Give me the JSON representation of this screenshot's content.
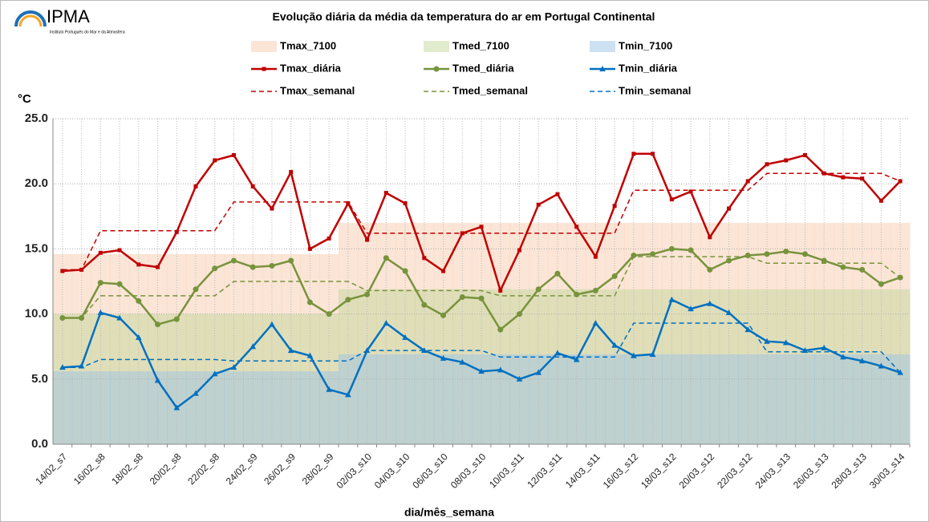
{
  "logo": {
    "text": "IPMA",
    "subtext": "Instituto Português do Mar e da Atmosfera"
  },
  "chart_data": {
    "type": "line",
    "title": "Evolução diária da média da temperatura do ar em Portugal Continental",
    "y_label": "°C",
    "x_label": "dia/mês_semana",
    "categories": [
      "14/02_s7",
      null,
      "16/02_s8",
      null,
      "18/02_s8",
      null,
      "20/02_s8",
      null,
      "22/02_s8",
      null,
      "24/02_s9",
      null,
      "26/02_s9",
      null,
      "28/02_s9",
      null,
      "02/03_s10",
      null,
      "04/03_s10",
      null,
      "06/03_s10",
      null,
      "08/03_s10",
      null,
      "10/03_s11",
      null,
      "12/03_s11",
      null,
      "14/03_s11",
      null,
      "16/03_s12",
      null,
      "18/03_s12",
      null,
      "20/03_s12",
      null,
      "22/03_s12",
      null,
      "24/03_s13",
      null,
      "26/03_s13",
      null,
      "28/03_s13",
      null,
      "30/03_s14"
    ],
    "ylim": [
      0,
      25
    ],
    "yticks": [
      {
        "value": 0,
        "label": "0.0"
      },
      {
        "value": 5,
        "label": "5.0"
      },
      {
        "value": 10,
        "label": "10.0"
      },
      {
        "value": 15,
        "label": "15.0"
      },
      {
        "value": 20,
        "label": "20.0"
      },
      {
        "value": 25,
        "label": "25.0"
      }
    ],
    "grid": true,
    "series": [
      {
        "name": "Tmax_7100",
        "style": "band",
        "color": "#f8cbad",
        "values": [
          14.6,
          14.6,
          14.6,
          14.6,
          14.6,
          14.6,
          14.6,
          14.6,
          14.6,
          14.6,
          14.6,
          14.6,
          14.6,
          14.6,
          14.6,
          17.0,
          17.0,
          17.0,
          17.0,
          17.0,
          17.0,
          17.0,
          17.0,
          17.0,
          17.0,
          17.0,
          17.0,
          17.0,
          17.0,
          17.0,
          17.0,
          17.0,
          17.0,
          17.0,
          17.0,
          17.0,
          17.0,
          17.0,
          17.0,
          17.0,
          17.0,
          17.0,
          17.0,
          17.0,
          17.0
        ]
      },
      {
        "name": "Tmed_7100",
        "style": "band",
        "color": "#c4d79b",
        "values": [
          10.0,
          10.0,
          10.0,
          10.0,
          10.0,
          10.0,
          10.0,
          10.0,
          10.0,
          10.0,
          10.0,
          10.0,
          10.0,
          10.0,
          10.0,
          11.9,
          11.9,
          11.9,
          11.9,
          11.9,
          11.9,
          11.9,
          11.9,
          11.9,
          11.9,
          11.9,
          11.9,
          11.9,
          11.9,
          11.9,
          11.9,
          11.9,
          11.9,
          11.9,
          11.9,
          11.9,
          11.9,
          11.9,
          11.9,
          11.9,
          11.9,
          11.9,
          11.9,
          11.9,
          11.9
        ]
      },
      {
        "name": "Tmin_7100",
        "style": "band",
        "color": "#9dc3e6",
        "values": [
          5.6,
          5.6,
          5.6,
          5.6,
          5.6,
          5.6,
          5.6,
          5.6,
          5.6,
          5.6,
          5.6,
          5.6,
          5.6,
          5.6,
          5.6,
          6.9,
          6.9,
          6.9,
          6.9,
          6.9,
          6.9,
          6.9,
          6.9,
          6.9,
          6.9,
          6.9,
          6.9,
          6.9,
          6.9,
          6.9,
          6.9,
          6.9,
          6.9,
          6.9,
          6.9,
          6.9,
          6.9,
          6.9,
          6.9,
          6.9,
          6.9,
          6.9,
          6.9,
          6.9,
          6.9
        ]
      },
      {
        "name": "Tmax_diária",
        "style": "line",
        "marker": "square",
        "color": "#c00000",
        "values": [
          13.3,
          13.4,
          14.7,
          14.9,
          13.8,
          13.6,
          16.3,
          19.8,
          21.8,
          22.2,
          19.8,
          18.1,
          20.9,
          15.0,
          15.8,
          18.5,
          15.7,
          19.3,
          18.5,
          14.3,
          13.3,
          16.2,
          16.7,
          11.8,
          14.9,
          18.4,
          19.2,
          16.7,
          14.4,
          18.3,
          22.3,
          22.3,
          18.8,
          19.4,
          15.9,
          18.1,
          20.2,
          21.5,
          21.8,
          22.2,
          20.8,
          20.5,
          20.4,
          18.7,
          20.2
        ]
      },
      {
        "name": "Tmed_diária",
        "style": "line",
        "marker": "circle",
        "color": "#77933c",
        "values": [
          9.7,
          9.7,
          12.4,
          12.3,
          11.0,
          9.2,
          9.6,
          11.9,
          13.5,
          14.1,
          13.6,
          13.7,
          14.1,
          10.9,
          10.0,
          11.1,
          11.5,
          14.3,
          13.3,
          10.7,
          9.9,
          11.3,
          11.2,
          8.8,
          10.0,
          11.9,
          13.1,
          11.5,
          11.8,
          12.9,
          14.5,
          14.6,
          15.0,
          14.9,
          13.4,
          14.1,
          14.5,
          14.6,
          14.8,
          14.6,
          14.1,
          13.6,
          13.4,
          12.3,
          12.8
        ]
      },
      {
        "name": "Tmin_diária",
        "style": "line",
        "marker": "triangle",
        "color": "#0070c0",
        "values": [
          5.9,
          6.0,
          10.1,
          9.7,
          8.2,
          4.9,
          2.8,
          3.9,
          5.4,
          5.9,
          7.5,
          9.2,
          7.2,
          6.8,
          4.2,
          3.8,
          7.2,
          9.3,
          8.2,
          7.2,
          6.6,
          6.3,
          5.6,
          5.7,
          5.0,
          5.5,
          7.0,
          6.5,
          9.3,
          7.6,
          6.8,
          6.9,
          11.1,
          10.4,
          10.8,
          10.1,
          8.8,
          7.9,
          7.8,
          7.2,
          7.4,
          6.7,
          6.4,
          6.0,
          5.5
        ]
      },
      {
        "name": "Tmax_semanal",
        "style": "dash",
        "color": "#c00000",
        "values": [
          13.4,
          13.4,
          16.4,
          16.4,
          16.4,
          16.4,
          16.4,
          16.4,
          16.4,
          18.6,
          18.6,
          18.6,
          18.6,
          18.6,
          18.6,
          18.6,
          16.2,
          16.2,
          16.2,
          16.2,
          16.2,
          16.2,
          16.2,
          16.2,
          16.2,
          16.2,
          16.2,
          16.2,
          16.2,
          16.2,
          19.5,
          19.5,
          19.5,
          19.5,
          19.5,
          19.5,
          19.5,
          20.8,
          20.8,
          20.8,
          20.8,
          20.8,
          20.8,
          20.8,
          20.2
        ]
      },
      {
        "name": "Tmed_semanal",
        "style": "dash",
        "color": "#77933c",
        "values": [
          9.7,
          9.7,
          11.4,
          11.4,
          11.4,
          11.4,
          11.4,
          11.4,
          11.4,
          12.5,
          12.5,
          12.5,
          12.5,
          12.5,
          12.5,
          12.5,
          11.8,
          11.8,
          11.8,
          11.8,
          11.8,
          11.8,
          11.8,
          11.4,
          11.4,
          11.4,
          11.4,
          11.4,
          11.4,
          11.4,
          14.4,
          14.4,
          14.4,
          14.4,
          14.4,
          14.4,
          14.4,
          13.9,
          13.9,
          13.9,
          13.9,
          13.9,
          13.9,
          13.9,
          12.8
        ]
      },
      {
        "name": "Tmin_semanal",
        "style": "dash",
        "color": "#0070c0",
        "values": [
          5.9,
          5.9,
          6.5,
          6.5,
          6.5,
          6.5,
          6.5,
          6.5,
          6.5,
          6.4,
          6.4,
          6.4,
          6.4,
          6.4,
          6.4,
          6.4,
          7.2,
          7.2,
          7.2,
          7.2,
          7.2,
          7.2,
          7.2,
          6.7,
          6.7,
          6.7,
          6.7,
          6.7,
          6.7,
          6.7,
          9.3,
          9.3,
          9.3,
          9.3,
          9.3,
          9.3,
          9.3,
          7.1,
          7.1,
          7.1,
          7.1,
          7.1,
          7.1,
          7.1,
          5.5
        ]
      }
    ]
  }
}
